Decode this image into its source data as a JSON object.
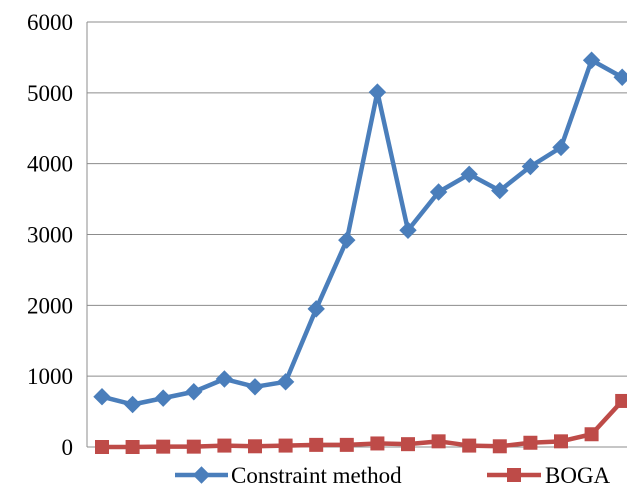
{
  "chart_data": {
    "type": "line",
    "title": "",
    "xlabel": "",
    "ylabel": "",
    "x": [
      1,
      2,
      3,
      4,
      5,
      6,
      7,
      8,
      9,
      10,
      11,
      12,
      13,
      14,
      15,
      16,
      17,
      18
    ],
    "ylim": [
      0,
      6000
    ],
    "yticks": [
      0,
      1000,
      2000,
      3000,
      4000,
      5000,
      6000
    ],
    "ytick_labels": [
      "0",
      "1000",
      "2000",
      "3000",
      "4000",
      "5000",
      "6000"
    ],
    "grid": "horizontal",
    "legend_position": "bottom",
    "series": [
      {
        "name": "Constraint method",
        "color": "#4a7ebb",
        "marker": "diamond",
        "values": [
          710,
          600,
          690,
          780,
          960,
          850,
          920,
          1950,
          2920,
          5010,
          3060,
          3600,
          3850,
          3620,
          3960,
          4230,
          5460,
          5220
        ]
      },
      {
        "name": "BOGA",
        "color": "#be4b48",
        "marker": "square",
        "values": [
          0,
          0,
          5,
          5,
          20,
          10,
          20,
          30,
          30,
          50,
          40,
          80,
          20,
          10,
          60,
          80,
          180,
          650
        ]
      }
    ]
  }
}
